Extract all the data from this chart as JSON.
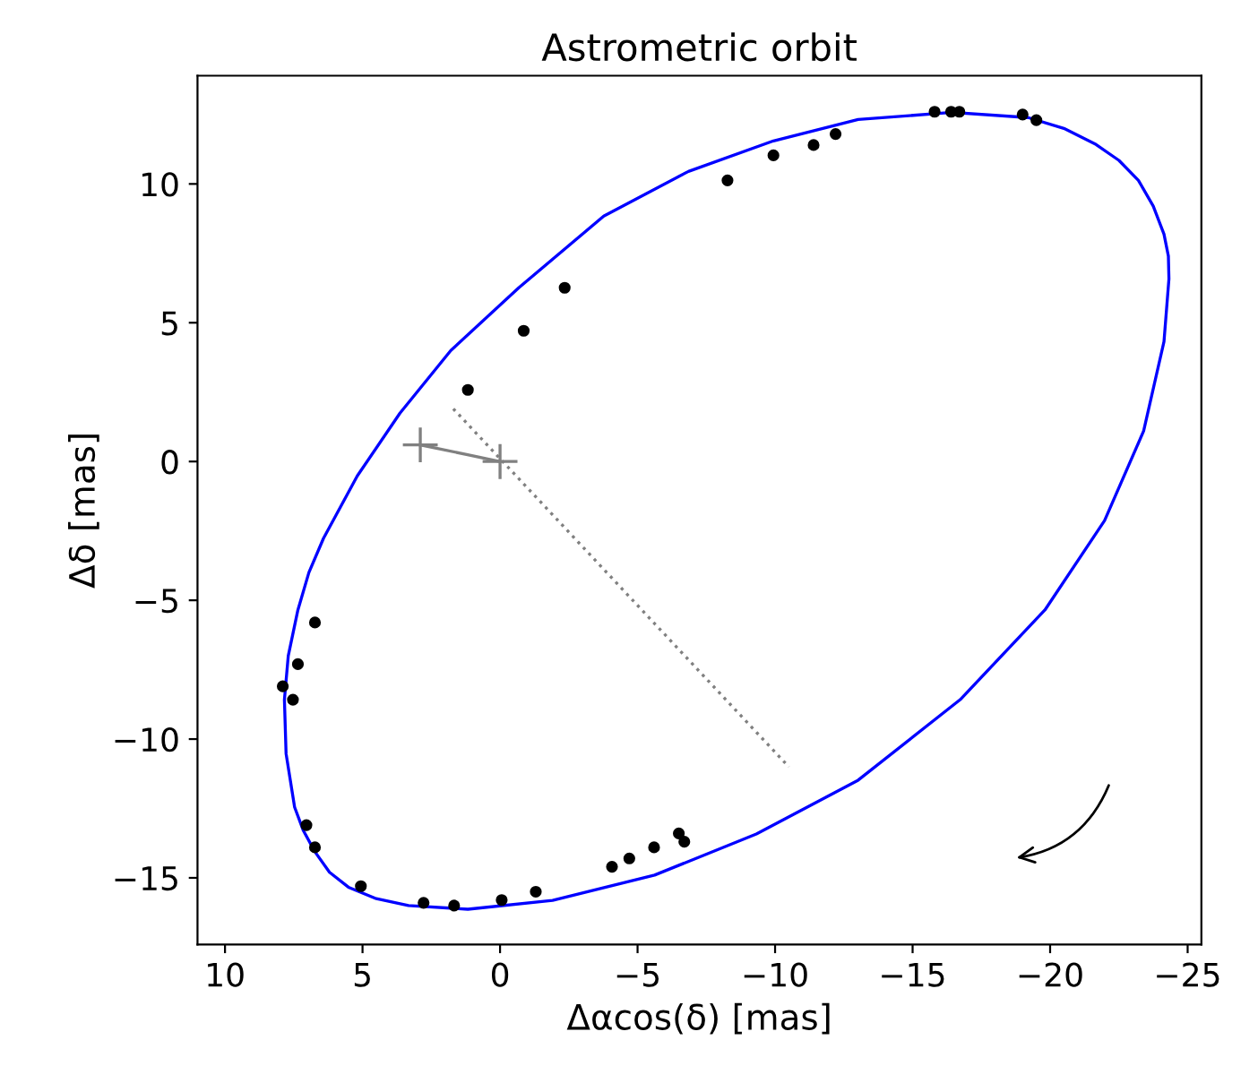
{
  "chart_data": {
    "type": "line",
    "title": "Astrometric orbit",
    "xlabel": "Δαcos(δ) [mas]",
    "ylabel": "Δδ [mas]",
    "xlim": [
      11,
      -25.5
    ],
    "xticks": [
      10,
      5,
      0,
      -5,
      -10,
      -15,
      -20,
      -25
    ],
    "ylim": [
      -17.4,
      13.9
    ],
    "yticks": [
      -15,
      -10,
      -5,
      0,
      5,
      10
    ],
    "grid": false,
    "series": [
      {
        "color": "#0000ff",
        "line_style": "solid",
        "marker": "none",
        "x": [
          -16.42,
          -19.2,
          -20.5,
          -21.67,
          -22.5,
          -23.21,
          -23.75,
          -24.14,
          -24.3,
          -24.32,
          -24.14,
          -23.4,
          -21.98,
          -19.81,
          -16.73,
          -13.02,
          -9.32,
          -5.62,
          -1.91,
          1.17,
          3.33,
          4.5,
          5.49,
          6.2,
          6.73,
          7.15,
          7.47,
          7.78,
          7.84,
          7.7,
          7.35,
          6.95,
          6.42,
          5.19,
          3.64,
          1.79,
          -0.68,
          -3.77,
          -6.85,
          -9.94,
          -13.02,
          -16.3
        ],
        "values": [
          12.58,
          12.39,
          12.0,
          11.42,
          10.85,
          10.13,
          9.2,
          8.19,
          7.4,
          6.58,
          4.32,
          1.1,
          -2.13,
          -5.35,
          -8.58,
          -11.48,
          -13.42,
          -14.9,
          -15.81,
          -16.13,
          -16.0,
          -15.75,
          -15.35,
          -14.8,
          -14.06,
          -13.3,
          -12.45,
          -10.52,
          -8.58,
          -7.0,
          -5.35,
          -4.0,
          -2.77,
          -0.52,
          1.74,
          4.0,
          6.26,
          8.84,
          10.45,
          11.55,
          12.32,
          12.57
        ]
      },
      {
        "color": "#808080",
        "line_style": "dotted",
        "marker": "none",
        "x": [
          1.7,
          -10.5
        ],
        "values": [
          1.9,
          -11.0
        ]
      },
      {
        "color": "#808080",
        "line_style": "solid",
        "marker": "cross",
        "x": [
          2.9,
          0
        ],
        "values": [
          0.6,
          0
        ]
      },
      {
        "type": "scatter",
        "color": "#000000",
        "marker": "circle",
        "x": [
          1.17,
          -0.86,
          -2.35,
          -8.27,
          -9.94,
          -11.4,
          -12.2,
          -15.8,
          -16.4,
          -16.7,
          -19.0,
          -19.5,
          7.9,
          7.53,
          7.35,
          6.73,
          7.04,
          6.73,
          5.06,
          2.78,
          1.67,
          -0.06,
          -1.3,
          -4.07,
          -4.7,
          -5.6,
          -6.5,
          -6.7
        ],
        "values": [
          2.58,
          4.71,
          6.26,
          10.13,
          11.03,
          11.4,
          11.8,
          12.6,
          12.6,
          12.6,
          12.5,
          12.3,
          -8.1,
          -8.58,
          -7.3,
          -5.8,
          -13.1,
          -13.9,
          -15.3,
          -15.9,
          -16.0,
          -15.8,
          -15.5,
          -14.6,
          -14.3,
          -13.9,
          -13.4,
          -13.7
        ]
      }
    ]
  }
}
